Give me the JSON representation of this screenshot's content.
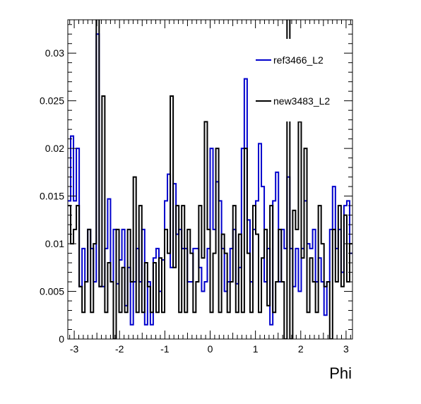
{
  "chart_data": {
    "type": "histogram",
    "title": "",
    "xlabel": "Phi",
    "ylabel": "",
    "xlim": [
      -3.1416,
      3.1416
    ],
    "ylim": [
      0,
      0.0335
    ],
    "x_ticks": [
      "-3",
      "-2",
      "-1",
      "0",
      "1",
      "2",
      "3"
    ],
    "x_tick_values": [
      -3,
      -2,
      -1,
      0,
      1,
      2,
      3
    ],
    "y_ticks": [
      "0",
      "0.005",
      "0.01",
      "0.015",
      "0.02",
      "0.025",
      "0.03"
    ],
    "y_tick_values": [
      0,
      0.005,
      0.01,
      0.015,
      0.02,
      0.025,
      0.03
    ],
    "grid": false,
    "legend_position": "top-right",
    "n_bins": 100,
    "series": [
      {
        "name": "ref3466_L2",
        "color": "#0000cc",
        "values": [
          0.0145,
          0.0213,
          0.0145,
          0.02,
          0.0055,
          0.0095,
          0.006,
          0.0115,
          0.0095,
          0.006,
          0.032,
          0.0055,
          0.0055,
          0.0095,
          0.0147,
          0.006,
          0.0115,
          0.0058,
          0.0083,
          0.0115,
          0.0035,
          0.0075,
          0.0015,
          0.006,
          0.0095,
          0.006,
          0.0115,
          0.0015,
          0.006,
          0.0015,
          0.0085,
          0.0095,
          0.005,
          0.0083,
          0.0145,
          0.0173,
          0.0075,
          0.0163,
          0.011,
          0.0115,
          0.0095,
          0.0095,
          0.006,
          0.006,
          0.0095,
          0.0095,
          0.0075,
          0.005,
          0.006,
          0.0095,
          0.02,
          0.0115,
          0.0165,
          0.0145,
          0.0095,
          0.005,
          0.006,
          0.0095,
          0.0115,
          0.0058,
          0.0075,
          0.02,
          0.0273,
          0.0125,
          0.006,
          0.0115,
          0.0145,
          0.0205,
          0.016,
          0.006,
          0.0095,
          0.0015,
          0.0145,
          0.0175,
          0.006,
          0.0115,
          0.0095,
          0.017,
          0.0095,
          0.0055,
          0.0095,
          0.005,
          0.0095,
          0.0145,
          0.01,
          0.0095,
          0.0115,
          0.006,
          0.0085,
          0.006,
          0.0025,
          0.006,
          0.0115,
          0.016,
          0.0095,
          0.0115,
          0.007,
          0.014,
          0.0145,
          0.009
        ]
      },
      {
        "name": "new3483_L2",
        "color": "#000000",
        "values": [
          0.014,
          0.01,
          0.0115,
          0.014,
          0.0055,
          0.0028,
          0.006,
          0.0115,
          0.0028,
          0.01,
          0.034,
          0.0055,
          0.0255,
          0.0028,
          0.008,
          0.006,
          0.0,
          0.0115,
          0.0028,
          0.0075,
          0.0028,
          0.0115,
          0.006,
          0.017,
          0.0028,
          0.014,
          0.0028,
          0.008,
          0.0055,
          0.0028,
          0.008,
          0.0028,
          0.0085,
          0.0028,
          0.0115,
          0.009,
          0.0255,
          0.0075,
          0.014,
          0.0028,
          0.014,
          0.0028,
          0.0115,
          0.009,
          0.0028,
          0.006,
          0.014,
          0.0085,
          0.0228,
          0.0115,
          0.0028,
          0.009,
          0.02,
          0.0028,
          0.011,
          0.009,
          0.0028,
          0.006,
          0.014,
          0.0028,
          0.011,
          0.0028,
          0.02,
          0.009,
          0.0028,
          0.014,
          0.011,
          0.0028,
          0.0085,
          0.0115,
          0.0035,
          0.014,
          0.0028,
          0.006,
          0.0115,
          0.006,
          0.0,
          0.0345,
          0.0,
          0.0135,
          0.0115,
          0.0228,
          0.0085,
          0.02,
          0.0028,
          0.0085,
          0.006,
          0.0028,
          0.014,
          0.01,
          0.0055,
          0.006,
          0.0,
          0.0115,
          0.006,
          0.014,
          0.0055,
          0.013,
          0.006,
          0.01
        ]
      }
    ]
  }
}
